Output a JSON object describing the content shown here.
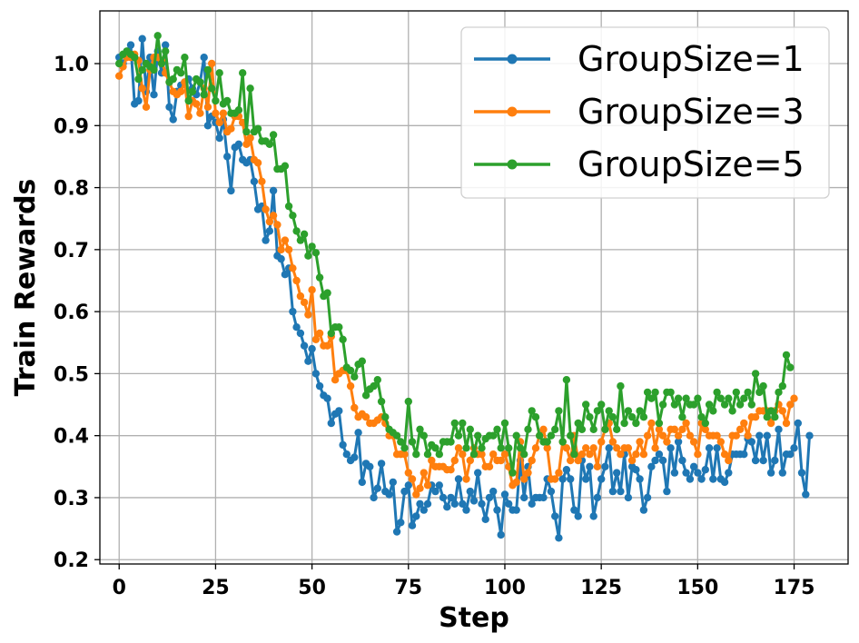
{
  "chart_data": {
    "type": "line",
    "title": "",
    "xlabel": "Step",
    "ylabel": "Train Rewards",
    "xlim": [
      -5,
      189
    ],
    "ylim": [
      0.193,
      1.085
    ],
    "xticks": [
      0,
      25,
      50,
      75,
      100,
      125,
      150,
      175
    ],
    "yticks": [
      0.2,
      0.3,
      0.4,
      0.5,
      0.6,
      0.7,
      0.8,
      0.9,
      1.0
    ],
    "xtick_labels": [
      "0",
      "25",
      "50",
      "75",
      "100",
      "125",
      "150",
      "175"
    ],
    "ytick_labels": [
      "0.2",
      "0.3",
      "0.4",
      "0.5",
      "0.6",
      "0.7",
      "0.8",
      "0.9",
      "1.0"
    ],
    "grid": true,
    "legend_position": "top-right",
    "series": [
      {
        "name": "GroupSize=1",
        "color": "#1f77b4",
        "values": [
          1.01,
          1.0,
          1.02,
          1.03,
          0.935,
          0.94,
          1.04,
          0.955,
          1.01,
          0.95,
          1.02,
          0.985,
          1.03,
          0.93,
          0.91,
          0.955,
          0.965,
          0.97,
          0.975,
          0.96,
          0.95,
          0.97,
          1.01,
          0.9,
          0.915,
          0.905,
          0.88,
          0.91,
          0.85,
          0.795,
          0.865,
          0.87,
          0.845,
          0.84,
          0.845,
          0.81,
          0.765,
          0.77,
          0.715,
          0.73,
          0.795,
          0.69,
          0.685,
          0.66,
          0.67,
          0.6,
          0.575,
          0.565,
          0.545,
          0.52,
          0.54,
          0.5,
          0.48,
          0.465,
          0.46,
          0.42,
          0.435,
          0.44,
          0.385,
          0.37,
          0.36,
          0.365,
          0.405,
          0.325,
          0.355,
          0.35,
          0.3,
          0.315,
          0.355,
          0.31,
          0.305,
          0.325,
          0.245,
          0.26,
          0.31,
          0.32,
          0.255,
          0.27,
          0.29,
          0.28,
          0.29,
          0.32,
          0.31,
          0.32,
          0.3,
          0.285,
          0.3,
          0.29,
          0.33,
          0.29,
          0.28,
          0.31,
          0.295,
          0.34,
          0.29,
          0.265,
          0.3,
          0.31,
          0.28,
          0.24,
          0.305,
          0.29,
          0.28,
          0.28,
          0.36,
          0.3,
          0.35,
          0.29,
          0.3,
          0.3,
          0.3,
          0.33,
          0.31,
          0.27,
          0.235,
          0.33,
          0.345,
          0.33,
          0.28,
          0.27,
          0.36,
          0.33,
          0.35,
          0.27,
          0.3,
          0.33,
          0.35,
          0.38,
          0.31,
          0.34,
          0.31,
          0.37,
          0.3,
          0.35,
          0.345,
          0.33,
          0.28,
          0.3,
          0.35,
          0.36,
          0.37,
          0.36,
          0.31,
          0.38,
          0.34,
          0.39,
          0.36,
          0.34,
          0.33,
          0.35,
          0.34,
          0.33,
          0.345,
          0.38,
          0.33,
          0.38,
          0.33,
          0.325,
          0.34,
          0.37,
          0.37,
          0.37,
          0.37,
          0.395,
          0.39,
          0.36,
          0.4,
          0.36,
          0.4,
          0.34,
          0.36,
          0.41,
          0.34,
          0.37,
          0.37,
          0.38,
          0.42,
          0.34,
          0.305,
          0.4
        ]
      },
      {
        "name": "GroupSize=3",
        "color": "#ff7f0e",
        "values": [
          0.98,
          0.995,
          1.01,
          1.01,
          1.015,
          1.005,
          0.96,
          0.93,
          0.99,
          1.01,
          1.01,
          1.005,
          0.985,
          0.97,
          0.955,
          0.95,
          0.955,
          0.97,
          0.915,
          0.94,
          0.935,
          0.92,
          0.96,
          0.93,
          1.0,
          0.92,
          0.905,
          0.92,
          0.89,
          0.895,
          0.915,
          0.915,
          0.905,
          0.87,
          0.88,
          0.845,
          0.84,
          0.81,
          0.765,
          0.745,
          0.755,
          0.74,
          0.7,
          0.715,
          0.7,
          0.67,
          0.65,
          0.625,
          0.615,
          0.595,
          0.635,
          0.555,
          0.565,
          0.545,
          0.545,
          0.56,
          0.49,
          0.5,
          0.505,
          0.505,
          0.48,
          0.445,
          0.43,
          0.435,
          0.43,
          0.42,
          0.42,
          0.425,
          0.43,
          0.42,
          0.4,
          0.4,
          0.37,
          0.37,
          0.37,
          0.34,
          0.33,
          0.305,
          0.315,
          0.34,
          0.32,
          0.36,
          0.35,
          0.35,
          0.35,
          0.345,
          0.345,
          0.36,
          0.38,
          0.37,
          0.33,
          0.36,
          0.38,
          0.37,
          0.37,
          0.35,
          0.35,
          0.37,
          0.36,
          0.36,
          0.37,
          0.35,
          0.32,
          0.325,
          0.39,
          0.33,
          0.34,
          0.36,
          0.38,
          0.4,
          0.41,
          0.38,
          0.33,
          0.33,
          0.34,
          0.39,
          0.38,
          0.36,
          0.4,
          0.36,
          0.37,
          0.38,
          0.37,
          0.38,
          0.35,
          0.39,
          0.41,
          0.42,
          0.39,
          0.38,
          0.37,
          0.38,
          0.38,
          0.36,
          0.37,
          0.39,
          0.37,
          0.4,
          0.42,
          0.38,
          0.41,
          0.4,
          0.39,
          0.41,
          0.41,
          0.4,
          0.41,
          0.42,
          0.4,
          0.39,
          0.37,
          0.42,
          0.41,
          0.4,
          0.4,
          0.4,
          0.39,
          0.37,
          0.36,
          0.4,
          0.4,
          0.41,
          0.42,
          0.4,
          0.43,
          0.43,
          0.44,
          0.44,
          0.44,
          0.42,
          0.44,
          0.45,
          0.44,
          0.42,
          0.45,
          0.46
        ]
      },
      {
        "name": "GroupSize=5",
        "color": "#2ca02c",
        "values": [
          1.0,
          1.015,
          1.02,
          1.015,
          1.01,
          0.975,
          0.99,
          1.0,
          0.995,
          0.99,
          1.045,
          1.0,
          1.02,
          0.97,
          0.975,
          0.99,
          0.985,
          1.01,
          0.94,
          0.955,
          0.975,
          0.97,
          0.95,
          0.99,
          0.96,
          0.94,
          0.985,
          0.935,
          0.94,
          0.92,
          0.92,
          0.925,
          0.985,
          0.89,
          0.96,
          0.89,
          0.895,
          0.875,
          0.875,
          0.87,
          0.885,
          0.83,
          0.83,
          0.835,
          0.77,
          0.755,
          0.73,
          0.715,
          0.725,
          0.69,
          0.705,
          0.695,
          0.655,
          0.625,
          0.63,
          0.565,
          0.575,
          0.575,
          0.555,
          0.51,
          0.505,
          0.495,
          0.515,
          0.52,
          0.465,
          0.475,
          0.48,
          0.49,
          0.455,
          0.43,
          0.41,
          0.405,
          0.4,
          0.39,
          0.38,
          0.455,
          0.39,
          0.37,
          0.41,
          0.4,
          0.37,
          0.385,
          0.38,
          0.37,
          0.39,
          0.39,
          0.39,
          0.42,
          0.4,
          0.42,
          0.38,
          0.41,
          0.37,
          0.4,
          0.38,
          0.395,
          0.4,
          0.4,
          0.41,
          0.38,
          0.42,
          0.38,
          0.34,
          0.4,
          0.38,
          0.37,
          0.41,
          0.44,
          0.43,
          0.4,
          0.39,
          0.39,
          0.4,
          0.41,
          0.44,
          0.39,
          0.49,
          0.4,
          0.37,
          0.42,
          0.41,
          0.45,
          0.43,
          0.41,
          0.44,
          0.45,
          0.41,
          0.44,
          0.43,
          0.41,
          0.48,
          0.42,
          0.44,
          0.43,
          0.42,
          0.44,
          0.43,
          0.47,
          0.46,
          0.47,
          0.42,
          0.45,
          0.47,
          0.47,
          0.45,
          0.46,
          0.43,
          0.46,
          0.45,
          0.45,
          0.46,
          0.43,
          0.42,
          0.45,
          0.44,
          0.47,
          0.46,
          0.45,
          0.46,
          0.44,
          0.47,
          0.45,
          0.46,
          0.47,
          0.45,
          0.5,
          0.47,
          0.48,
          0.43,
          0.44,
          0.43,
          0.47,
          0.48,
          0.53,
          0.51
        ]
      }
    ]
  }
}
